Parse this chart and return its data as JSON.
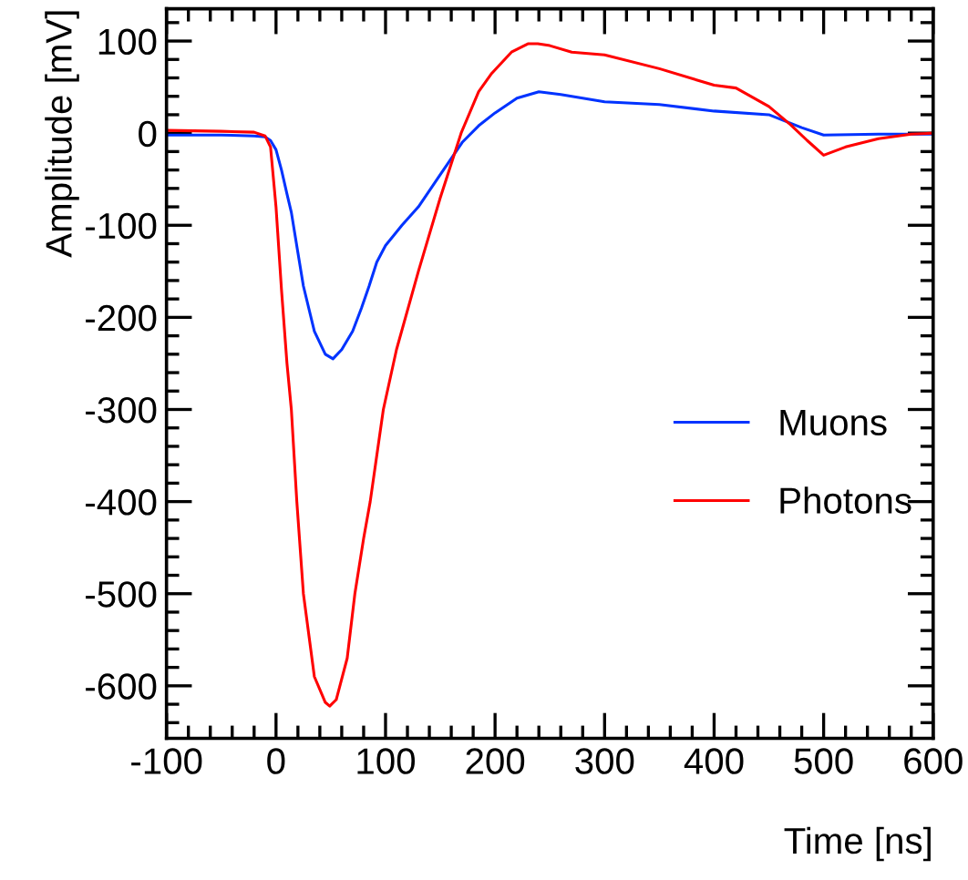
{
  "chart_data": {
    "type": "line",
    "xlabel": "Time [ns]",
    "ylabel": "Amplitude [mV]",
    "xlim": [
      -100,
      600
    ],
    "ylim": [
      -657,
      135
    ],
    "xticks": [
      -100,
      0,
      100,
      200,
      300,
      400,
      500,
      600
    ],
    "yticks": [
      -600,
      -500,
      -400,
      -300,
      -200,
      -100,
      0,
      100
    ],
    "grid": false,
    "legend": "center right",
    "marker": "none",
    "line_style": "solid",
    "series": [
      {
        "name": "Muons",
        "color": "#0033ff",
        "x": [
          -100,
          -50,
          -20,
          -10,
          -5,
          0,
          5,
          10,
          14,
          20,
          25,
          35,
          45,
          52,
          60,
          70,
          78,
          85,
          92,
          100,
          115,
          130,
          150,
          170,
          185,
          200,
          220,
          240,
          260,
          300,
          350,
          400,
          450,
          480,
          500,
          550,
          600
        ],
        "values": [
          -2,
          -2,
          -3,
          -4,
          -8,
          -18,
          -40,
          -66,
          -86,
          -130,
          -166,
          -215,
          -240,
          -245,
          -235,
          -215,
          -190,
          -166,
          -140,
          -122,
          -100,
          -80,
          -45,
          -10,
          8,
          22,
          38,
          45,
          42,
          34,
          31,
          24,
          20,
          6,
          -2,
          -1,
          -1
        ]
      },
      {
        "name": "Photons",
        "color": "#ff0000",
        "x": [
          -100,
          -50,
          -20,
          -10,
          -5,
          0,
          5,
          10,
          14,
          19,
          25,
          35,
          45,
          49,
          55,
          65,
          72,
          80,
          86,
          98,
          110,
          130,
          150,
          169,
          185,
          197,
          215,
          230,
          239,
          250,
          270,
          300,
          350,
          400,
          420,
          450,
          470,
          485,
          500,
          520,
          550,
          580,
          600
        ],
        "values": [
          3,
          2,
          1,
          -3,
          -15,
          -80,
          -170,
          -250,
          -300,
          -400,
          -500,
          -590,
          -618,
          -622,
          -615,
          -570,
          -500,
          -440,
          -400,
          -300,
          -235,
          -150,
          -70,
          0,
          45,
          65,
          88,
          97,
          97,
          95,
          88,
          85,
          70,
          52,
          49,
          29,
          9,
          -8,
          -24,
          -15,
          -6,
          -1,
          0
        ]
      }
    ]
  }
}
